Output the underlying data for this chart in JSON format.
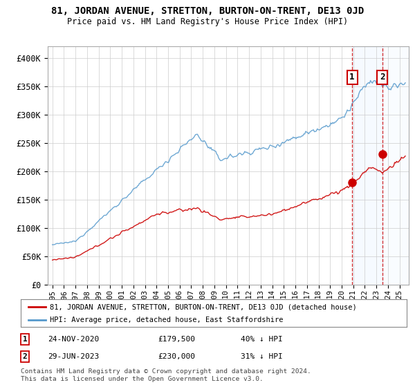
{
  "title": "81, JORDAN AVENUE, STRETTON, BURTON-ON-TRENT, DE13 0JD",
  "subtitle": "Price paid vs. HM Land Registry's House Price Index (HPI)",
  "legend_line1": "81, JORDAN AVENUE, STRETTON, BURTON-ON-TRENT, DE13 0JD (detached house)",
  "legend_line2": "HPI: Average price, detached house, East Staffordshire",
  "footnote": "Contains HM Land Registry data © Crown copyright and database right 2024.\nThis data is licensed under the Open Government Licence v3.0.",
  "sale1_date": "24-NOV-2020",
  "sale1_price": "£179,500",
  "sale1_hpi": "40% ↓ HPI",
  "sale2_date": "29-JUN-2023",
  "sale2_price": "£230,000",
  "sale2_hpi": "31% ↓ HPI",
  "sale1_x": 2020.9,
  "sale1_y": 179500,
  "sale2_x": 2023.5,
  "sale2_y": 230000,
  "ylim": [
    0,
    420000
  ],
  "xlim_left": 1994.6,
  "xlim_right": 2025.8,
  "yticks": [
    0,
    50000,
    100000,
    150000,
    200000,
    250000,
    300000,
    350000,
    400000
  ],
  "ytick_labels": [
    "£0",
    "£50K",
    "£100K",
    "£150K",
    "£200K",
    "£250K",
    "£300K",
    "£350K",
    "£400K"
  ],
  "hpi_color": "#5599cc",
  "sale_color": "#cc0000",
  "vline_color": "#cc0000",
  "shade_color": "#ddeeff",
  "grid_color": "#cccccc",
  "bg_color": "#ffffff",
  "plot_bg_color": "#ffffff"
}
